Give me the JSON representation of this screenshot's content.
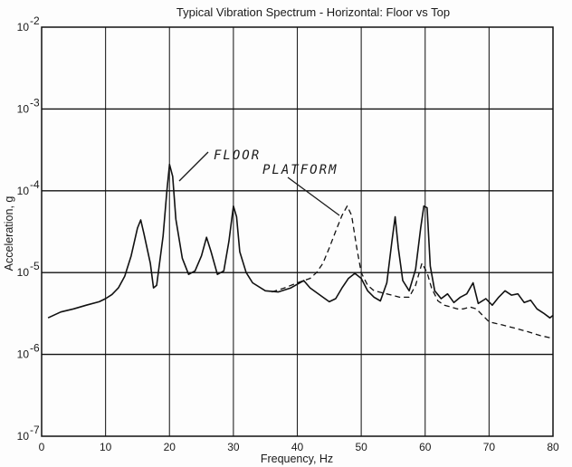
{
  "chart_data": {
    "type": "line",
    "title": "Typical Vibration Spectrum  -  Horizontal: Floor vs Top",
    "xlabel": "Frequency, Hz",
    "ylabel": "Acceleration, g",
    "xlim": [
      0,
      80
    ],
    "ylim": [
      1e-07,
      0.01
    ],
    "yscale": "log",
    "grid": true,
    "x_ticks": [
      "0",
      "10",
      "20",
      "30",
      "40",
      "50",
      "60",
      "70",
      "80"
    ],
    "y_ticks": [
      {
        "value": 0.01,
        "base": "10",
        "exp": "-2"
      },
      {
        "value": 0.001,
        "base": "10",
        "exp": "-3"
      },
      {
        "value": 0.0001,
        "base": "10",
        "exp": "-4"
      },
      {
        "value": 1e-05,
        "base": "10",
        "exp": "-5"
      },
      {
        "value": 1e-06,
        "base": "10",
        "exp": "-6"
      },
      {
        "value": 1e-07,
        "base": "10",
        "exp": "-7"
      }
    ],
    "annotations": [
      "FLOOR",
      "PLATFORM"
    ],
    "series": [
      {
        "name": "FLOOR",
        "style": "solid",
        "points": [
          [
            1,
            2.8e-06
          ],
          [
            3,
            3.3e-06
          ],
          [
            5,
            3.6e-06
          ],
          [
            7,
            4e-06
          ],
          [
            9,
            4.4e-06
          ],
          [
            10,
            4.8e-06
          ],
          [
            11,
            5.4e-06
          ],
          [
            12,
            6.5e-06
          ],
          [
            13,
            9e-06
          ],
          [
            14,
            1.6e-05
          ],
          [
            15,
            3.5e-05
          ],
          [
            15.5,
            4.4e-05
          ],
          [
            16,
            3e-05
          ],
          [
            17,
            1.3e-05
          ],
          [
            17.5,
            6.5e-06
          ],
          [
            18,
            7e-06
          ],
          [
            19,
            2.8e-05
          ],
          [
            19.6,
            0.0001
          ],
          [
            20,
            0.00021
          ],
          [
            20.5,
            0.00015
          ],
          [
            21,
            4.5e-05
          ],
          [
            22,
            1.5e-05
          ],
          [
            23,
            9.5e-06
          ],
          [
            24,
            1.05e-05
          ],
          [
            25,
            1.6e-05
          ],
          [
            25.8,
            2.7e-05
          ],
          [
            26.5,
            1.8e-05
          ],
          [
            27.5,
            9.5e-06
          ],
          [
            28.5,
            1.05e-05
          ],
          [
            29.3,
            2.4e-05
          ],
          [
            30,
            6.5e-05
          ],
          [
            30.5,
            4.8e-05
          ],
          [
            31,
            1.8e-05
          ],
          [
            32,
            1e-05
          ],
          [
            33,
            7.5e-06
          ],
          [
            35,
            6e-06
          ],
          [
            37,
            5.8e-06
          ],
          [
            39,
            6.5e-06
          ],
          [
            40,
            7.2e-06
          ],
          [
            41,
            8e-06
          ],
          [
            42,
            6.5e-06
          ],
          [
            44,
            5e-06
          ],
          [
            45,
            4.4e-06
          ],
          [
            46,
            4.8e-06
          ],
          [
            47,
            6.5e-06
          ],
          [
            48,
            8.5e-06
          ],
          [
            49,
            9.8e-06
          ],
          [
            50,
            8.5e-06
          ],
          [
            51,
            6e-06
          ],
          [
            52,
            5e-06
          ],
          [
            53,
            4.5e-06
          ],
          [
            54,
            7.5e-06
          ],
          [
            54.8,
            2.4e-05
          ],
          [
            55.3,
            4.8e-05
          ],
          [
            55.8,
            2e-05
          ],
          [
            56.5,
            8e-06
          ],
          [
            57.5,
            6e-06
          ],
          [
            58.5,
            1.1e-05
          ],
          [
            59.3,
            3.5e-05
          ],
          [
            59.8,
            6.5e-05
          ],
          [
            60.3,
            6.2e-05
          ],
          [
            60.8,
            1.2e-05
          ],
          [
            61.5,
            6e-06
          ],
          [
            62.5,
            4.8e-06
          ],
          [
            63.5,
            5.5e-06
          ],
          [
            64.5,
            4.3e-06
          ],
          [
            65.5,
            5e-06
          ],
          [
            66.5,
            5.5e-06
          ],
          [
            67.5,
            7.5e-06
          ],
          [
            68.3,
            4.2e-06
          ],
          [
            69.5,
            4.8e-06
          ],
          [
            70.5,
            4e-06
          ],
          [
            71.5,
            5e-06
          ],
          [
            72.5,
            6e-06
          ],
          [
            73.5,
            5.3e-06
          ],
          [
            74.5,
            5.5e-06
          ],
          [
            75.5,
            4.3e-06
          ],
          [
            76.5,
            4.6e-06
          ],
          [
            77.5,
            3.6e-06
          ],
          [
            78.5,
            3.2e-06
          ],
          [
            79.5,
            2.8e-06
          ],
          [
            80,
            3e-06
          ]
        ]
      },
      {
        "name": "PLATFORM",
        "style": "dashed",
        "points": [
          [
            36,
            5.8e-06
          ],
          [
            38,
            6.5e-06
          ],
          [
            40,
            7.5e-06
          ],
          [
            42,
            8.5e-06
          ],
          [
            43,
            1e-05
          ],
          [
            44,
            1.3e-05
          ],
          [
            45,
            2e-05
          ],
          [
            46,
            3.2e-05
          ],
          [
            47,
            5e-05
          ],
          [
            47.8,
            6.5e-05
          ],
          [
            48.5,
            5e-05
          ],
          [
            49.3,
            2e-05
          ],
          [
            50,
            1e-05
          ],
          [
            51,
            7e-06
          ],
          [
            52,
            6e-06
          ],
          [
            54,
            5.5e-06
          ],
          [
            56,
            5e-06
          ],
          [
            57.5,
            5e-06
          ],
          [
            58.5,
            7e-06
          ],
          [
            59.5,
            1.3e-05
          ],
          [
            60.3,
            1e-05
          ],
          [
            61,
            6.5e-06
          ],
          [
            62,
            4.5e-06
          ],
          [
            63,
            4e-06
          ],
          [
            64,
            3.8e-06
          ],
          [
            65,
            3.6e-06
          ],
          [
            66,
            3.6e-06
          ],
          [
            67,
            3.8e-06
          ],
          [
            68,
            3.6e-06
          ],
          [
            69,
            3e-06
          ],
          [
            70,
            2.5e-06
          ],
          [
            72,
            2.3e-06
          ],
          [
            74,
            2.1e-06
          ],
          [
            76,
            1.9e-06
          ],
          [
            78,
            1.7e-06
          ],
          [
            79.5,
            1.6e-06
          ]
        ]
      }
    ]
  }
}
